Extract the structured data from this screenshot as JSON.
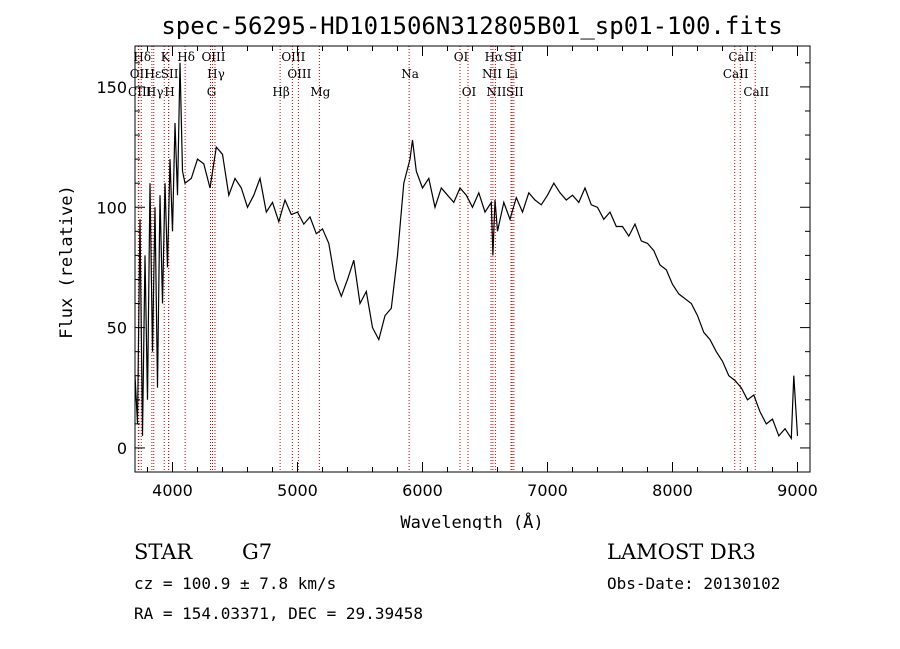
{
  "chart_data": {
    "type": "line",
    "title": "spec-56295-HD101506N312805B01_sp01-100.fits",
    "xlabel": "Wavelength (Å)",
    "ylabel": "Flux (relative)",
    "xlim": [
      3700,
      9100
    ],
    "ylim": [
      -10,
      167
    ],
    "xticks": [
      4000,
      5000,
      6000,
      7000,
      8000,
      9000
    ],
    "yticks": [
      0,
      50,
      100,
      150
    ],
    "grid": false,
    "series": [
      {
        "name": "spectrum",
        "color": "#000000",
        "x": [
          3700,
          3720,
          3740,
          3760,
          3780,
          3800,
          3820,
          3840,
          3860,
          3880,
          3900,
          3920,
          3940,
          3960,
          3980,
          4000,
          4020,
          4040,
          4060,
          4080,
          4100,
          4150,
          4200,
          4250,
          4300,
          4350,
          4400,
          4450,
          4500,
          4550,
          4600,
          4650,
          4700,
          4750,
          4800,
          4850,
          4900,
          4950,
          5000,
          5050,
          5100,
          5150,
          5200,
          5250,
          5300,
          5350,
          5400,
          5450,
          5500,
          5550,
          5600,
          5650,
          5700,
          5750,
          5800,
          5850,
          5900,
          5920,
          5950,
          6000,
          6050,
          6100,
          6150,
          6200,
          6250,
          6300,
          6350,
          6400,
          6450,
          6500,
          6550,
          6563,
          6580,
          6600,
          6650,
          6700,
          6750,
          6800,
          6850,
          6900,
          6950,
          7000,
          7050,
          7100,
          7150,
          7200,
          7250,
          7300,
          7350,
          7400,
          7450,
          7500,
          7550,
          7600,
          7650,
          7700,
          7750,
          7800,
          7850,
          7900,
          7950,
          8000,
          8050,
          8100,
          8150,
          8200,
          8250,
          8300,
          8350,
          8400,
          8450,
          8500,
          8550,
          8600,
          8650,
          8700,
          8750,
          8800,
          8850,
          8900,
          8950,
          8970,
          9000
        ],
        "values": [
          30,
          10,
          95,
          5,
          80,
          20,
          110,
          40,
          100,
          25,
          105,
          60,
          110,
          75,
          120,
          90,
          135,
          105,
          160,
          115,
          110,
          112,
          120,
          118,
          108,
          125,
          122,
          105,
          112,
          108,
          100,
          105,
          112,
          98,
          102,
          94,
          103,
          97,
          98,
          93,
          96,
          89,
          91,
          85,
          70,
          63,
          70,
          78,
          60,
          65,
          50,
          45,
          55,
          58,
          80,
          110,
          120,
          128,
          115,
          108,
          112,
          100,
          108,
          105,
          102,
          108,
          105,
          100,
          106,
          98,
          102,
          80,
          103,
          90,
          102,
          95,
          104,
          98,
          106,
          103,
          101,
          105,
          110,
          106,
          103,
          105,
          102,
          108,
          101,
          100,
          95,
          98,
          92,
          92,
          88,
          93,
          86,
          85,
          82,
          76,
          74,
          68,
          64,
          62,
          60,
          55,
          48,
          45,
          40,
          36,
          30,
          28,
          25,
          20,
          22,
          15,
          10,
          12,
          5,
          8,
          4,
          30,
          5
        ]
      }
    ],
    "lines": [
      {
        "label": "Hδ",
        "x": 3750,
        "row": 1
      },
      {
        "label": "OII",
        "x": 3727,
        "row": 2
      },
      {
        "label": "CIII",
        "x": 3730,
        "row": 3
      },
      {
        "label": "Hε",
        "x": 3835,
        "row": 2
      },
      {
        "label": "Hγ",
        "x": 3850,
        "row": 3
      },
      {
        "label": "K",
        "x": 3934,
        "row": 1
      },
      {
        "label": "SII",
        "x": 3969,
        "row": 2
      },
      {
        "label": "H",
        "x": 3969,
        "row": 3
      },
      {
        "label": "Hδ",
        "x": 4101,
        "row": 1
      },
      {
        "label": "OIII",
        "x": 4320,
        "row": 1
      },
      {
        "label": "Hγ",
        "x": 4340,
        "row": 2
      },
      {
        "label": "G",
        "x": 4304,
        "row": 3
      },
      {
        "label": "Hβ",
        "x": 4861,
        "row": 3
      },
      {
        "label": "OIII",
        "x": 4959,
        "row": 1
      },
      {
        "label": "OIII",
        "x": 5007,
        "row": 2
      },
      {
        "label": "Mg",
        "x": 5175,
        "row": 3
      },
      {
        "label": "Na",
        "x": 5893,
        "row": 2
      },
      {
        "label": "OI",
        "x": 6300,
        "row": 1
      },
      {
        "label": "OI",
        "x": 6364,
        "row": 3
      },
      {
        "label": "Hα",
        "x": 6563,
        "row": 1
      },
      {
        "label": "NII",
        "x": 6548,
        "row": 2
      },
      {
        "label": "NII",
        "x": 6583,
        "row": 3
      },
      {
        "label": "SII",
        "x": 6717,
        "row": 1
      },
      {
        "label": "Li",
        "x": 6708,
        "row": 2
      },
      {
        "label": "SII",
        "x": 6731,
        "row": 3
      },
      {
        "label": "CaII",
        "x": 8542,
        "row": 1
      },
      {
        "label": "CaII",
        "x": 8498,
        "row": 2
      },
      {
        "label": "CaII",
        "x": 8662,
        "row": 3
      }
    ],
    "line_color": "#cc0000"
  },
  "info": {
    "object_class": "STAR",
    "subclass": "G7",
    "survey": "LAMOST DR3",
    "redshift": "cz = 100.9 ± 7.8 km/s",
    "obs_date": "Obs-Date: 20130102",
    "coords": "RA = 154.03371, DEC =  29.39458"
  }
}
